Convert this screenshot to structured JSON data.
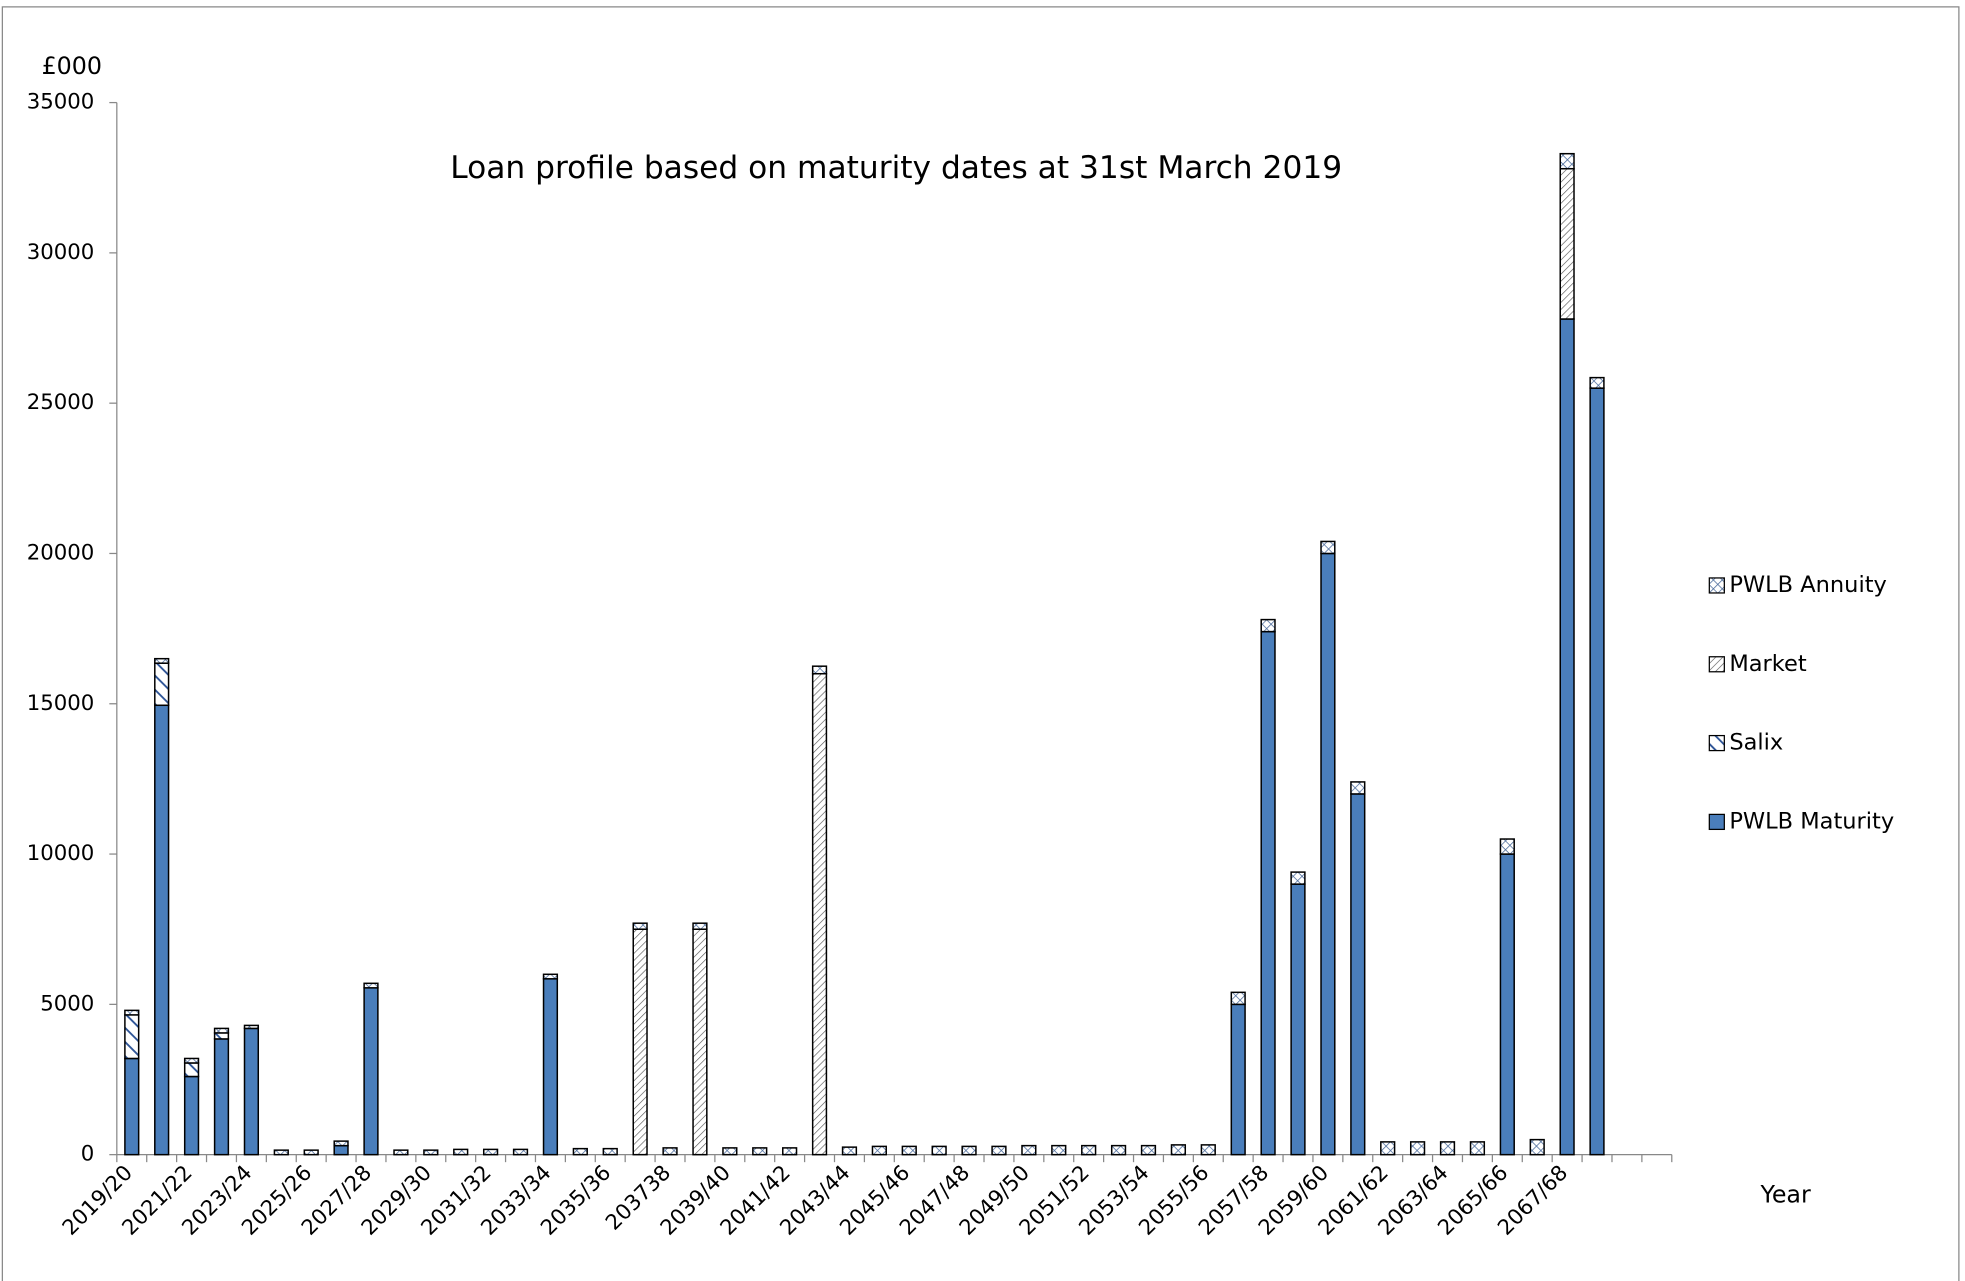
{
  "chart_data": {
    "type": "stacked-bar",
    "title": "Loan profile based on maturity dates at 31st March 2019",
    "y_label": "£000",
    "x_label": "Year",
    "categories": [
      "2019/20",
      null,
      "2021/22",
      null,
      "2023/24",
      null,
      "2025/26",
      null,
      "2027/28",
      null,
      "2029/30",
      null,
      "2031/32",
      null,
      "2033/34",
      null,
      "2035/36",
      null,
      "203738",
      null,
      "2039/40",
      null,
      "2041/42",
      null,
      "2043/44",
      null,
      "2045/46",
      null,
      "2047/48",
      null,
      "2049/50",
      null,
      "2051/52",
      null,
      "2053/54",
      null,
      "2055/56",
      null,
      "2057/58",
      null,
      "2059/60",
      null,
      "2061/62",
      null,
      "2063/64",
      null,
      "2065/66",
      null,
      "2067/68",
      null,
      null,
      null
    ],
    "series": [
      {
        "name": "PWLB  Maturity",
        "color": "#4a7ebb",
        "values": [
          3200,
          14950,
          2600,
          3850,
          4200,
          null,
          null,
          300,
          5550,
          null,
          null,
          null,
          null,
          null,
          5850,
          null,
          null,
          null,
          null,
          null,
          null,
          null,
          null,
          null,
          null,
          null,
          null,
          null,
          null,
          null,
          null,
          null,
          null,
          null,
          null,
          null,
          null,
          5000,
          17400,
          9000,
          20000,
          12000,
          null,
          null,
          null,
          null,
          10000,
          null,
          27800,
          25500,
          null,
          null
        ]
      },
      {
        "name": "Salix",
        "pattern": "wide-diagonal",
        "values": [
          1450,
          1400,
          450,
          200,
          null,
          null,
          null,
          null,
          null,
          null,
          null,
          null,
          null,
          null,
          null,
          null,
          null,
          null,
          null,
          null,
          null,
          null,
          null,
          null,
          null,
          null,
          null,
          null,
          null,
          null,
          null,
          null,
          null,
          null,
          null,
          null,
          null,
          null,
          null,
          null,
          null,
          null,
          null,
          null,
          null,
          null,
          null,
          null,
          null,
          null,
          null,
          null
        ]
      },
      {
        "name": "Market",
        "pattern": "fine-diagonal",
        "values": [
          null,
          null,
          null,
          null,
          null,
          null,
          null,
          null,
          null,
          null,
          null,
          null,
          null,
          null,
          null,
          null,
          null,
          7500,
          null,
          7500,
          null,
          null,
          null,
          16000,
          null,
          null,
          null,
          null,
          null,
          null,
          null,
          null,
          null,
          null,
          null,
          null,
          null,
          null,
          null,
          null,
          null,
          null,
          null,
          null,
          null,
          null,
          null,
          null,
          5000,
          null,
          null,
          null
        ]
      },
      {
        "name": "PWLB  Annuity",
        "pattern": "crosshatch",
        "values": [
          150,
          150,
          150,
          150,
          100,
          150,
          150,
          150,
          150,
          150,
          150,
          175,
          175,
          175,
          150,
          200,
          200,
          200,
          225,
          200,
          225,
          225,
          225,
          250,
          250,
          275,
          275,
          275,
          275,
          275,
          300,
          300,
          300,
          300,
          300,
          325,
          325,
          400,
          400,
          400,
          400,
          400,
          425,
          425,
          425,
          425,
          500,
          500,
          500,
          350,
          null,
          null
        ]
      }
    ],
    "ylim": [
      0,
      35000
    ],
    "yticks": [
      0,
      5000,
      10000,
      15000,
      20000,
      25000,
      30000,
      35000
    ],
    "grid": false,
    "legend": "right"
  }
}
